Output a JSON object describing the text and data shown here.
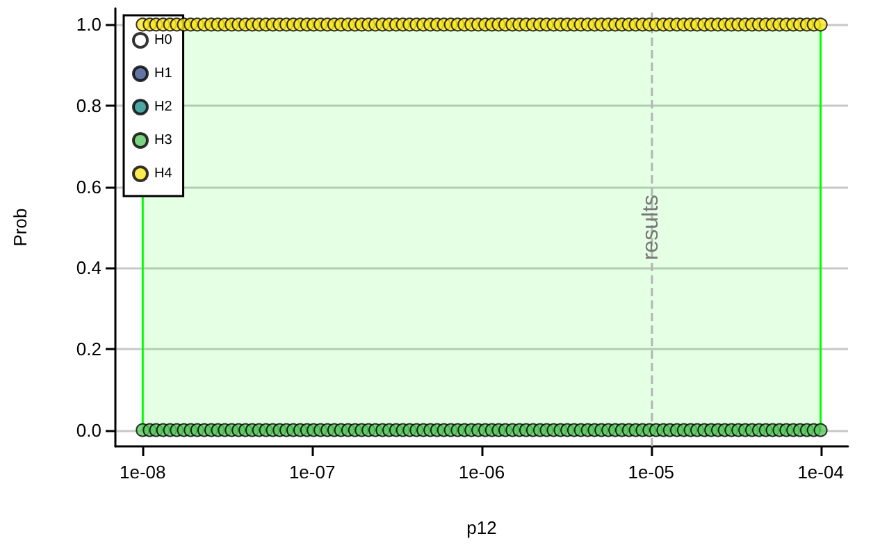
{
  "chart_data": {
    "type": "scatter",
    "xlabel": "p12",
    "ylabel": "Prob",
    "log": "x",
    "grid": "y",
    "legend": "top left",
    "marker": "circle",
    "xlim": [
      6.9e-09,
      0.000145
    ],
    "ylim": [
      -0.04,
      1.04
    ],
    "xticks": [
      {
        "value": 1e-08,
        "label": "1e-08"
      },
      {
        "value": 1e-07,
        "label": "1e-07"
      },
      {
        "value": 1e-06,
        "label": "1e-06"
      },
      {
        "value": 1e-05,
        "label": "1e-05"
      },
      {
        "value": 0.0001,
        "label": "1e-04"
      }
    ],
    "yticks": [
      {
        "value": 0,
        "label": "0.0"
      },
      0.2,
      0.4,
      0.6,
      0.8,
      {
        "value": 1,
        "label": "1.0"
      }
    ],
    "ref_lines": [
      {
        "axis": "x",
        "value": 1e-05,
        "label": "results",
        "color": "#b4b4b4",
        "line_style": "dashed"
      }
    ],
    "bands": [
      {
        "axis": "x",
        "from": 1e-08,
        "to": 0.0001,
        "color": "#00ff00"
      }
    ],
    "x": [
      1e-08,
      1.1e-08,
      1.2e-08,
      1.32e-08,
      1.45e-08,
      1.59e-08,
      1.75e-08,
      1.92e-08,
      2.1e-08,
      2.31e-08,
      2.54e-08,
      2.78e-08,
      3.05e-08,
      3.35e-08,
      3.68e-08,
      4.04e-08,
      4.43e-08,
      4.86e-08,
      5.34e-08,
      5.86e-08,
      6.43e-08,
      7.05e-08,
      7.74e-08,
      8.5e-08,
      9.33e-08,
      1.02e-07,
      1.12e-07,
      1.23e-07,
      1.35e-07,
      1.48e-07,
      1.63e-07,
      1.79e-07,
      1.96e-07,
      2.15e-07,
      2.36e-07,
      2.6e-07,
      2.85e-07,
      3.13e-07,
      3.43e-07,
      3.76e-07,
      4.13e-07,
      4.53e-07,
      4.98e-07,
      5.46e-07,
      5.99e-07,
      6.58e-07,
      7.22e-07,
      7.92e-07,
      8.7e-07,
      9.55e-07,
      1.05e-06,
      1.15e-06,
      1.26e-06,
      1.38e-06,
      1.52e-06,
      1.67e-06,
      1.83e-06,
      2.01e-06,
      2.21e-06,
      2.42e-06,
      2.66e-06,
      2.92e-06,
      3.2e-06,
      3.51e-06,
      3.85e-06,
      4.23e-06,
      4.64e-06,
      5.09e-06,
      5.59e-06,
      6.14e-06,
      6.73e-06,
      7.39e-06,
      8.11e-06,
      8.9e-06,
      9.77e-06,
      1.07e-05,
      1.18e-05,
      1.29e-05,
      1.42e-05,
      1.56e-05,
      1.71e-05,
      1.87e-05,
      2.06e-05,
      2.26e-05,
      2.48e-05,
      2.72e-05,
      2.98e-05,
      3.27e-05,
      3.59e-05,
      3.94e-05,
      4.33e-05,
      4.75e-05,
      5.21e-05,
      5.72e-05,
      6.28e-05,
      6.89e-05,
      7.56e-05,
      8.3e-05,
      9.11e-05,
      0.0001
    ],
    "series": [
      {
        "name": "H0",
        "color": "#ffffff",
        "values": [
          null,
          null,
          null,
          null,
          null,
          null,
          null,
          null,
          null,
          null,
          null,
          null,
          null,
          null,
          null,
          null,
          null,
          null,
          null,
          null,
          null,
          null,
          null,
          null,
          null,
          null,
          null,
          null,
          null,
          null,
          null,
          null,
          null,
          null,
          null,
          null,
          null,
          null,
          null,
          null,
          null,
          null,
          null,
          null,
          null,
          null,
          null,
          null,
          null,
          null,
          null,
          null,
          null,
          null,
          null,
          null,
          null,
          null,
          null,
          null,
          null,
          null,
          null,
          null,
          null,
          null,
          null,
          null,
          null,
          null,
          null,
          null,
          null,
          null,
          null,
          null,
          null,
          null,
          null,
          null,
          null,
          null,
          null,
          null,
          null,
          null,
          null,
          null,
          null,
          null,
          null,
          null,
          null,
          null,
          null,
          null,
          null,
          null,
          null,
          null
        ]
      },
      {
        "name": "H1",
        "color": "#3b528b",
        "values": [
          null,
          null,
          null,
          null,
          null,
          null,
          null,
          null,
          null,
          null,
          null,
          null,
          null,
          null,
          null,
          null,
          null,
          null,
          null,
          null,
          null,
          null,
          null,
          null,
          null,
          null,
          null,
          null,
          null,
          null,
          null,
          null,
          null,
          null,
          null,
          null,
          null,
          null,
          null,
          null,
          null,
          null,
          null,
          null,
          null,
          null,
          null,
          null,
          null,
          null,
          null,
          null,
          null,
          null,
          null,
          null,
          null,
          null,
          null,
          null,
          null,
          null,
          null,
          null,
          null,
          null,
          null,
          null,
          null,
          null,
          null,
          null,
          null,
          null,
          null,
          null,
          null,
          null,
          null,
          null,
          null,
          null,
          null,
          null,
          null,
          null,
          null,
          null,
          null,
          null,
          null,
          null,
          null,
          null,
          null,
          null,
          null,
          null,
          null,
          null
        ]
      },
      {
        "name": "H2",
        "color": "#21908c",
        "values": [
          null,
          null,
          null,
          null,
          null,
          null,
          null,
          null,
          null,
          null,
          null,
          null,
          null,
          null,
          null,
          null,
          null,
          null,
          null,
          null,
          null,
          null,
          null,
          null,
          null,
          null,
          null,
          null,
          null,
          null,
          null,
          null,
          null,
          null,
          null,
          null,
          null,
          null,
          null,
          null,
          null,
          null,
          null,
          null,
          null,
          null,
          null,
          null,
          null,
          null,
          null,
          null,
          null,
          null,
          null,
          null,
          null,
          null,
          null,
          null,
          null,
          null,
          null,
          null,
          null,
          null,
          null,
          null,
          null,
          null,
          null,
          null,
          null,
          null,
          null,
          null,
          null,
          null,
          null,
          null,
          null,
          null,
          null,
          null,
          null,
          null,
          null,
          null,
          null,
          null,
          null,
          null,
          null,
          null,
          null,
          null,
          null,
          null,
          null,
          null
        ]
      },
      {
        "name": "H3",
        "color": "#5dc863",
        "values": [
          0,
          0,
          0,
          0,
          0,
          0,
          0,
          0,
          0,
          0,
          0,
          0,
          0,
          0,
          0,
          0,
          0,
          0,
          0,
          0,
          0,
          0,
          0,
          0,
          0,
          0,
          0,
          0,
          0,
          0,
          0,
          0,
          0,
          0,
          0,
          0,
          0,
          0,
          0,
          0,
          0,
          0,
          0,
          0,
          0,
          0,
          0,
          0,
          0,
          0,
          0,
          0,
          0,
          0,
          0,
          0,
          0,
          0,
          0,
          0,
          0,
          0,
          0,
          0,
          0,
          0,
          0,
          0,
          0,
          0,
          0,
          0,
          0,
          0,
          0,
          0,
          0,
          0,
          0,
          0,
          0,
          0,
          0,
          0,
          0,
          0,
          0,
          0,
          0,
          0,
          0,
          0,
          0,
          0,
          0,
          0,
          0,
          0,
          0,
          0
        ]
      },
      {
        "name": "H4",
        "color": "#fde725",
        "values": [
          1,
          1,
          1,
          1,
          1,
          1,
          1,
          1,
          1,
          1,
          1,
          1,
          1,
          1,
          1,
          1,
          1,
          1,
          1,
          1,
          1,
          1,
          1,
          1,
          1,
          1,
          1,
          1,
          1,
          1,
          1,
          1,
          1,
          1,
          1,
          1,
          1,
          1,
          1,
          1,
          1,
          1,
          1,
          1,
          1,
          1,
          1,
          1,
          1,
          1,
          1,
          1,
          1,
          1,
          1,
          1,
          1,
          1,
          1,
          1,
          1,
          1,
          1,
          1,
          1,
          1,
          1,
          1,
          1,
          1,
          1,
          1,
          1,
          1,
          1,
          1,
          1,
          1,
          1,
          1,
          1,
          1,
          1,
          1,
          1,
          1,
          1,
          1,
          1,
          1,
          1,
          1,
          1,
          1,
          1,
          1,
          1,
          1,
          1,
          1
        ]
      }
    ]
  }
}
